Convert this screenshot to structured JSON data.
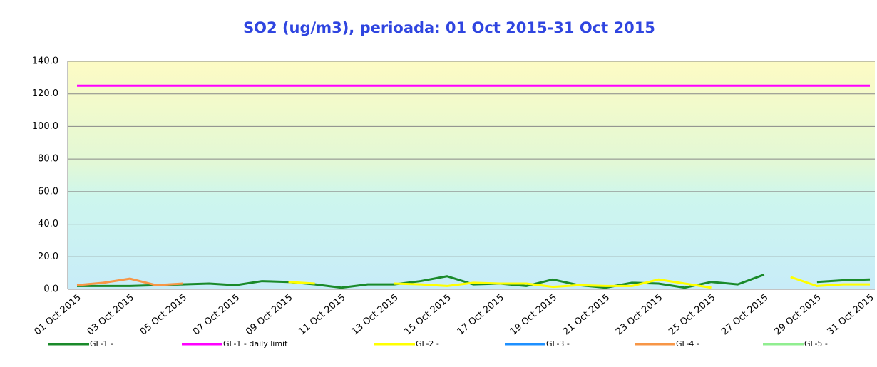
{
  "chart_data": {
    "type": "line",
    "title": "SO2 (ug/m3), perioada: 01 Oct 2015-31 Oct 2015",
    "categories": [
      "01 Oct 2015",
      null,
      "03 Oct 2015",
      null,
      "05 Oct 2015",
      null,
      "07 Oct 2015",
      null,
      "09 Oct 2015",
      null,
      "11 Oct 2015",
      null,
      "13 Oct 2015",
      null,
      "15 Oct 2015",
      null,
      "17 Oct 2015",
      null,
      "19 Oct 2015",
      null,
      "21 Oct 2015",
      null,
      "23 Oct 2015",
      null,
      "25 Oct 2015",
      null,
      "27 Oct 2015",
      null,
      "29 Oct 2015",
      null,
      "31 Oct 2015"
    ],
    "series": [
      {
        "name": "GL-1 -",
        "color": "#1a8a2a",
        "values": [
          2.0,
          2.0,
          2.0,
          2.5,
          3.0,
          3.5,
          2.5,
          5.0,
          4.5,
          3.0,
          1.0,
          3.0,
          3.0,
          5.0,
          8.0,
          3.0,
          3.5,
          2.0,
          6.0,
          2.5,
          1.0,
          4.0,
          3.5,
          1.0,
          4.5,
          3.0,
          9.0,
          null,
          4.5,
          5.5,
          6.0
        ]
      },
      {
        "name": "GL-1 - daily limit",
        "color": "#ff00ff",
        "values": [
          125,
          125,
          125,
          125,
          125,
          125,
          125,
          125,
          125,
          125,
          125,
          125,
          125,
          125,
          125,
          125,
          125,
          125,
          125,
          125,
          125,
          125,
          125,
          125,
          125,
          125,
          125,
          125,
          125,
          125,
          125
        ]
      },
      {
        "name": "GL-2 -",
        "color": "#ffff00",
        "values": [
          null,
          null,
          null,
          null,
          null,
          null,
          null,
          null,
          4.5,
          3.5,
          null,
          null,
          3.5,
          3.0,
          2.0,
          4.0,
          3.5,
          3.5,
          1.5,
          2.5,
          2.0,
          2.0,
          6.0,
          3.5,
          1.0,
          null,
          null,
          7.5,
          2.0,
          3.0,
          3.0
        ]
      },
      {
        "name": "GL-3 -",
        "color": "#1e90ff",
        "values": [
          null,
          null,
          null,
          null,
          null,
          null,
          null,
          null,
          null,
          null,
          null,
          null,
          null,
          null,
          null,
          null,
          null,
          null,
          null,
          null,
          null,
          null,
          null,
          null,
          null,
          null,
          null,
          null,
          null,
          null,
          null
        ]
      },
      {
        "name": "GL-4 -",
        "color": "#f79646",
        "values": [
          2.5,
          4.0,
          6.5,
          2.5,
          3.5,
          null,
          null,
          null,
          null,
          null,
          null,
          null,
          null,
          null,
          null,
          null,
          null,
          null,
          null,
          null,
          null,
          null,
          null,
          null,
          null,
          null,
          null,
          null,
          null,
          null,
          null
        ]
      },
      {
        "name": "GL-5 -",
        "color": "#90ee90",
        "values": [
          null,
          null,
          null,
          null,
          null,
          null,
          null,
          null,
          null,
          null,
          null,
          null,
          null,
          null,
          null,
          null,
          null,
          null,
          null,
          null,
          null,
          null,
          null,
          null,
          null,
          null,
          null,
          null,
          null,
          null,
          null
        ]
      }
    ],
    "ylim": [
      0,
      140
    ],
    "yticks": [
      {
        "value": 0,
        "label": "0.0"
      },
      {
        "value": 20,
        "label": "20.0"
      },
      {
        "value": 40,
        "label": "40.0"
      },
      {
        "value": 60,
        "label": "60.0"
      },
      {
        "value": 80,
        "label": "80.0"
      },
      {
        "value": 100,
        "label": "100.0"
      },
      {
        "value": 120,
        "label": "120.0"
      },
      {
        "value": 140,
        "label": "140.0"
      }
    ],
    "grid": true,
    "legend": "bottom"
  }
}
